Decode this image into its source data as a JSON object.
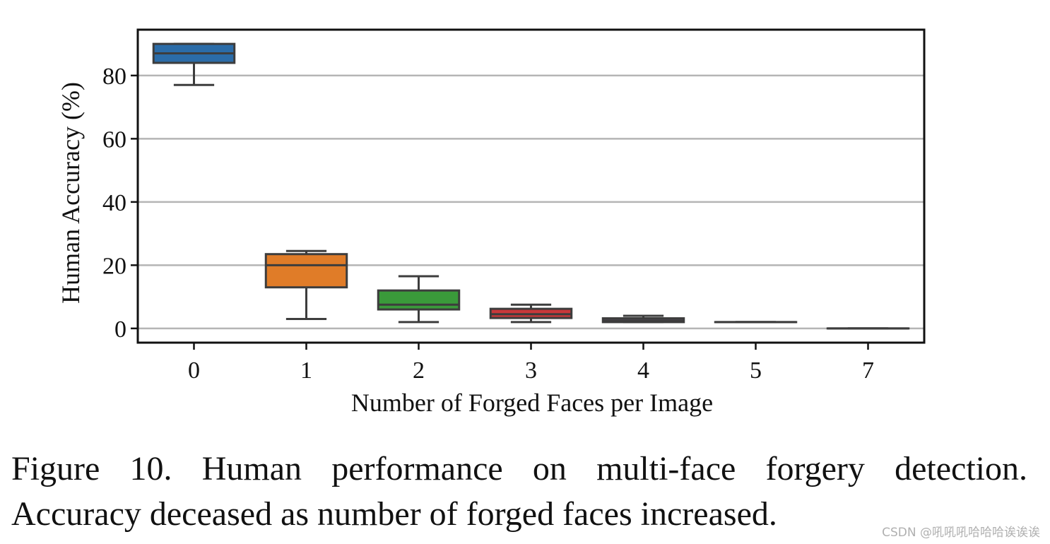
{
  "chart_data": {
    "type": "box",
    "categories": [
      "0",
      "1",
      "2",
      "3",
      "4",
      "5",
      "7"
    ],
    "xlabel": "Number of Forged Faces per Image",
    "ylabel": "Human Accuracy (%)",
    "ylim": [
      -4.5,
      94.5
    ],
    "yticks": [
      0,
      20,
      40,
      60,
      80
    ],
    "grid": "horizontal",
    "boxes": [
      {
        "category": "0",
        "whisker_low": 77,
        "q1": 84,
        "median": 87,
        "q3": 90,
        "whisker_high": 90,
        "color": "#2b6ca8"
      },
      {
        "category": "1",
        "whisker_low": 3,
        "q1": 13,
        "median": 20,
        "q3": 23.5,
        "whisker_high": 24.5,
        "color": "#e07c28"
      },
      {
        "category": "2",
        "whisker_low": 2,
        "q1": 6,
        "median": 7.5,
        "q3": 12,
        "whisker_high": 16.5,
        "color": "#3a9a3a"
      },
      {
        "category": "3",
        "whisker_low": 2,
        "q1": 3.3,
        "median": 4.5,
        "q3": 6.2,
        "whisker_high": 7.5,
        "color": "#c8383a"
      },
      {
        "category": "4",
        "whisker_low": 2,
        "q1": 2,
        "median": 2.5,
        "q3": 3.2,
        "whisker_high": 4,
        "color": "#8b63ad"
      },
      {
        "category": "5",
        "whisker_low": 2,
        "q1": 2,
        "median": 2,
        "q3": 2,
        "whisker_high": 2,
        "color": "#8b5a4a"
      },
      {
        "category": "7",
        "whisker_low": 0,
        "q1": 0,
        "median": 0,
        "q3": 0,
        "whisker_high": 0,
        "color": "#d67fc0"
      }
    ]
  },
  "caption": {
    "line1": "Figure 10. Human performance on multi-face forgery detection.",
    "line2": "Accuracy deceased as number of forged faces increased."
  },
  "watermark": "CSDN @吼吼吼哈哈哈诶诶诶"
}
